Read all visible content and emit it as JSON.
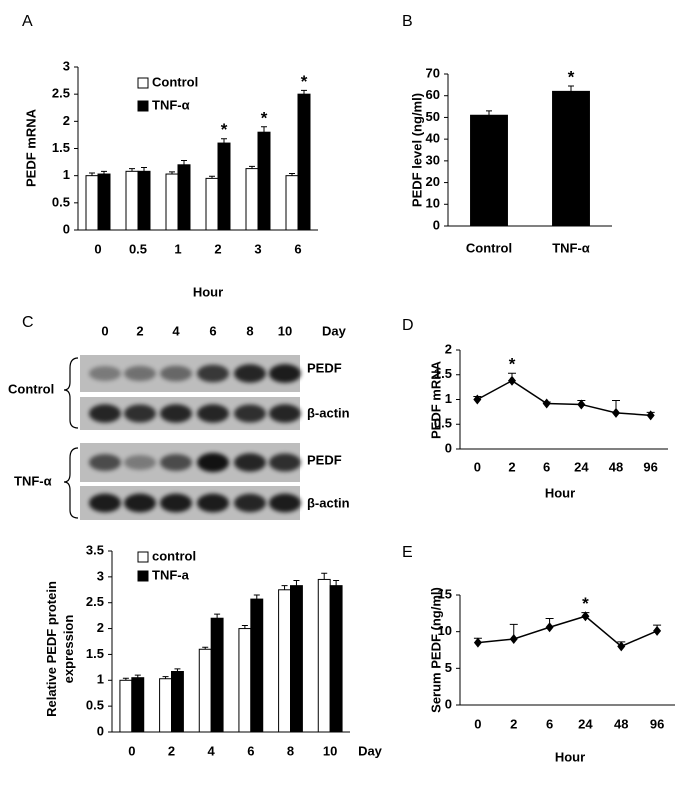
{
  "chart_data": [
    {
      "panel": "A",
      "type": "bar",
      "y_label": "PEDF mRNA",
      "x_label": "Hour",
      "categories": [
        "0",
        "0.5",
        "1",
        "2",
        "3",
        "6"
      ],
      "series": [
        {
          "name": "Control",
          "color": "#ffffff",
          "values": [
            1.0,
            1.08,
            1.03,
            0.95,
            1.13,
            1.0
          ],
          "errors": [
            0.05,
            0.05,
            0.04,
            0.04,
            0.04,
            0.04
          ]
        },
        {
          "name": "TNF-α",
          "color": "#000000",
          "values": [
            1.03,
            1.08,
            1.2,
            1.6,
            1.8,
            2.5
          ],
          "errors": [
            0.05,
            0.07,
            0.08,
            0.08,
            0.1,
            0.07
          ]
        }
      ],
      "ylim": [
        0,
        3
      ],
      "yticks": [
        0,
        0.5,
        1,
        1.5,
        2,
        2.5,
        3
      ],
      "legend": "top-left",
      "annotations": [
        {
          "text": "*",
          "category": "2"
        },
        {
          "text": "*",
          "category": "3"
        },
        {
          "text": "*",
          "category": "6"
        }
      ]
    },
    {
      "panel": "B",
      "type": "bar",
      "y_label": "PEDF level (ng/ml)",
      "categories": [
        "Control",
        "TNF-α"
      ],
      "series": [
        {
          "color": "#000000",
          "values": [
            51,
            62
          ],
          "errors": [
            2,
            2.5
          ]
        }
      ],
      "ylim": [
        0,
        70
      ],
      "yticks": [
        0,
        10,
        20,
        30,
        40,
        50,
        60,
        70
      ],
      "annotations": [
        {
          "text": "*",
          "category": "TNF-α"
        }
      ]
    },
    {
      "type": "bar",
      "y_label": "Relative PEDF protein expression",
      "x_label": "Day",
      "categories": [
        "0",
        "2",
        "4",
        "6",
        "8",
        "10"
      ],
      "series": [
        {
          "name": "control",
          "color": "#ffffff",
          "values": [
            1.0,
            1.03,
            1.6,
            2.0,
            2.75,
            2.95
          ],
          "errors": [
            0.04,
            0.04,
            0.04,
            0.06,
            0.08,
            0.12
          ]
        },
        {
          "name": "TNF-a",
          "color": "#000000",
          "values": [
            1.05,
            1.17,
            2.2,
            2.57,
            2.83,
            2.83
          ],
          "errors": [
            0.05,
            0.05,
            0.08,
            0.08,
            0.1,
            0.1
          ]
        }
      ],
      "ylim": [
        0,
        3.5
      ],
      "yticks": [
        0,
        0.5,
        1,
        1.5,
        2,
        2.5,
        3,
        3.5
      ],
      "legend": "top-left"
    },
    {
      "panel": "D",
      "type": "line",
      "y_label": "PEDF mRNA",
      "x_label": "Hour",
      "categories": [
        "0",
        "2",
        "6",
        "24",
        "48",
        "96"
      ],
      "series": [
        {
          "color": "#000000",
          "values": [
            1.0,
            1.38,
            0.92,
            0.9,
            0.73,
            0.68
          ],
          "errors": [
            0.06,
            0.15,
            0.03,
            0.08,
            0.25,
            0.06
          ]
        }
      ],
      "ylim": [
        0,
        2
      ],
      "yticks": [
        0,
        0.5,
        1,
        1.5,
        2
      ],
      "annotations": [
        {
          "text": "*",
          "category": "2"
        }
      ]
    },
    {
      "panel": "E",
      "type": "line",
      "y_label": "Serum PEDF (ng/ml)",
      "x_label": "Hour",
      "categories": [
        "0",
        "2",
        "6",
        "24",
        "48",
        "96"
      ],
      "series": [
        {
          "color": "#000000",
          "values": [
            8.5,
            9.0,
            10.6,
            12.1,
            8.0,
            10.1
          ],
          "errors": [
            0.6,
            2.0,
            1.2,
            0.5,
            0.6,
            0.8
          ]
        }
      ],
      "ylim": [
        0,
        15
      ],
      "yticks": [
        0,
        5,
        10,
        15
      ],
      "annotations": [
        {
          "text": "*",
          "category": "24"
        }
      ]
    }
  ],
  "blot": {
    "panel": "C",
    "lanes": [
      "0",
      "2",
      "4",
      "6",
      "8",
      "10"
    ],
    "lane_unit": "Day",
    "groups": [
      {
        "name": "Control",
        "bands": [
          "PEDF",
          "β-actin"
        ]
      },
      {
        "name": "TNF-α",
        "bands": [
          "PEDF",
          "β-actin"
        ]
      }
    ]
  }
}
